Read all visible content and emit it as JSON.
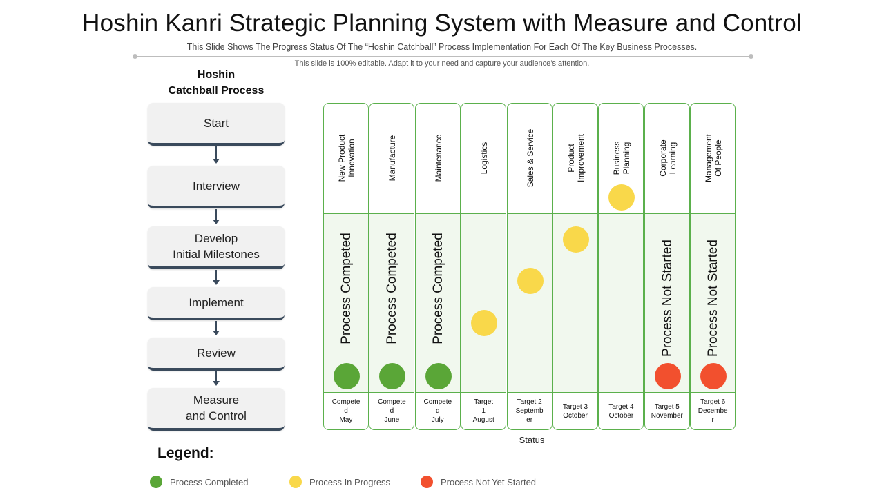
{
  "title": "Hoshin Kanri Strategic Planning System with Measure and Control",
  "subtitle": "This Slide Shows The Progress Status Of The “Hoshin Catchball” Process Implementation For Each Of The Key Business Processes.",
  "note": "This slide is 100% editable. Adapt it to your need and capture your audience’s attention.",
  "process": {
    "title_line1": "Hoshin",
    "title_line2": "Catchball Process",
    "steps": [
      {
        "line1": "Start",
        "line2": ""
      },
      {
        "line1": "Interview",
        "line2": ""
      },
      {
        "line1": "Develop",
        "line2": "Initial Milestones"
      },
      {
        "line1": "Implement",
        "line2": ""
      },
      {
        "line1": "Review",
        "line2": ""
      },
      {
        "line1": "Measure",
        "line2": "and Control"
      }
    ]
  },
  "colors": {
    "completed": "#5aa637",
    "in_progress": "#f9d84a",
    "not_started": "#f2502e",
    "border": "#5bb04c"
  },
  "columns": [
    {
      "header_line1": "New Product",
      "header_line2": "Innovation",
      "status": "completed",
      "level": 0,
      "status_text": "Process Competed",
      "footer_line1": "Compete",
      "footer_line2": "d",
      "footer_line3": "May"
    },
    {
      "header_line1": "Manufacture",
      "header_line2": "",
      "status": "completed",
      "level": 0,
      "status_text": "Process Competed",
      "footer_line1": "Compete",
      "footer_line2": "d",
      "footer_line3": "June"
    },
    {
      "header_line1": "Maintenance",
      "header_line2": "",
      "status": "completed",
      "level": 0,
      "status_text": "Process Competed",
      "footer_line1": "Compete",
      "footer_line2": "d",
      "footer_line3": "July"
    },
    {
      "header_line1": "Logistics",
      "header_line2": "",
      "status": "in_progress",
      "level": 1,
      "status_text": "",
      "footer_line1": "Target",
      "footer_line2": "1",
      "footer_line3": "August"
    },
    {
      "header_line1": "Sales & Service",
      "header_line2": "",
      "status": "in_progress",
      "level": 2,
      "status_text": "",
      "footer_line1": "Target 2",
      "footer_line2": "Septemb",
      "footer_line3": "er"
    },
    {
      "header_line1": "Product",
      "header_line2": "Improvement",
      "status": "in_progress",
      "level": 3,
      "status_text": "",
      "footer_line1": "Target 3",
      "footer_line2": "October",
      "footer_line3": ""
    },
    {
      "header_line1": "Business",
      "header_line2": "Planning",
      "status": "in_progress",
      "level": 4,
      "status_text": "",
      "footer_line1": "Target 4",
      "footer_line2": "October",
      "footer_line3": ""
    },
    {
      "header_line1": "Corporate",
      "header_line2": "Learning",
      "status": "not_started",
      "level": 0,
      "status_text": "Process Not Started",
      "footer_line1": "Target 5",
      "footer_line2": "November",
      "footer_line3": ""
    },
    {
      "header_line1": "Management",
      "header_line2": "Of People",
      "status": "not_started",
      "level": 0,
      "status_text": "Process Not Started",
      "footer_line1": "Target 6",
      "footer_line2": "Decembe",
      "footer_line3": "r"
    }
  ],
  "status_axis_label": "Status",
  "legend": {
    "title": "Legend:",
    "items": [
      {
        "label": "Process Completed",
        "color_key": "completed"
      },
      {
        "label": "Process In Progress",
        "color_key": "in_progress"
      },
      {
        "label": "Process Not Yet Started",
        "color_key": "not_started"
      }
    ]
  }
}
